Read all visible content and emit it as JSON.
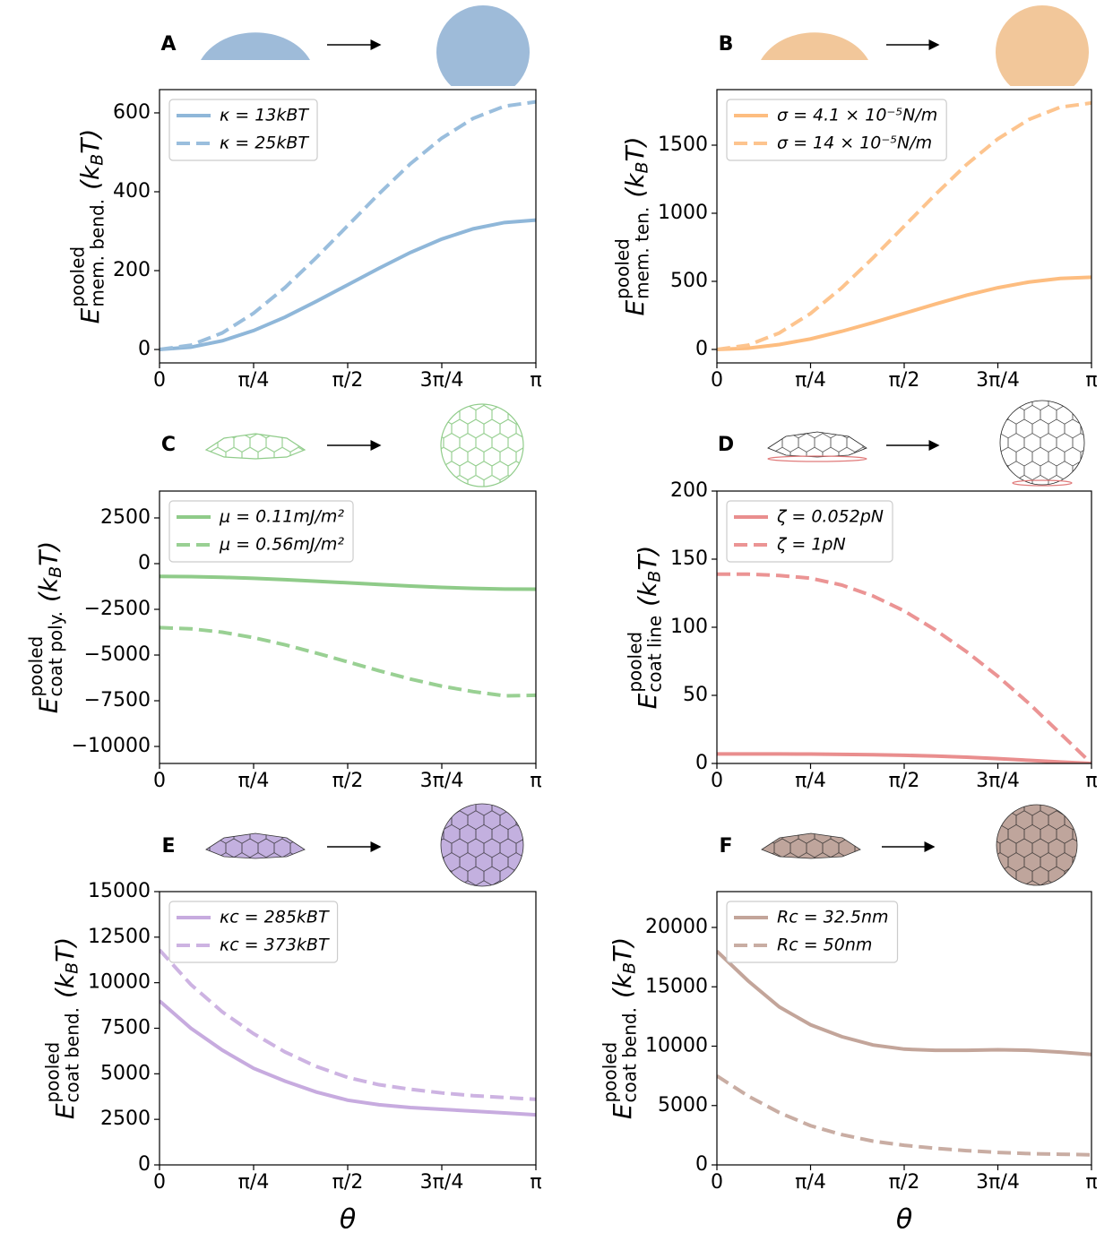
{
  "chart_data": [
    {
      "type": "line",
      "label": "A",
      "ylabel": {
        "symbol": "E",
        "superscript": "pooled",
        "subscript": "mem. bend.",
        "unit": "(k",
        "unit_subscript": "B",
        "unit_end": "T)"
      },
      "x": [
        0,
        0.2618,
        0.5236,
        0.7854,
        1.0472,
        1.309,
        1.5708,
        1.8326,
        2.0944,
        2.3562,
        2.618,
        2.8798,
        3.1416
      ],
      "xlim": [
        0,
        3.1416
      ],
      "xticks": [
        0,
        {
          "value": 0.7854,
          "label": "π/4"
        },
        {
          "value": 1.5708,
          "label": "π/2"
        },
        {
          "value": 2.3562,
          "label": "3π/4"
        },
        {
          "value": 3.1416,
          "label": "π"
        }
      ],
      "ylim": [
        -34,
        659
      ],
      "yticks": [
        0,
        200,
        400,
        600
      ],
      "series": [
        {
          "name": "κ = 13kBT",
          "color": "#8fb7d9",
          "linestyle": "solid",
          "values": [
            0,
            6,
            22,
            48,
            82,
            122,
            164,
            206,
            246,
            280,
            306,
            322,
            328
          ]
        },
        {
          "name": "κ = 25kBT",
          "color": "#9abedd",
          "linestyle": "dashed",
          "values": [
            0,
            11,
            42,
            92,
            157,
            233,
            314,
            395,
            471,
            536,
            586,
            617,
            628
          ]
        }
      ]
    },
    {
      "type": "line",
      "label": "B",
      "ylabel": {
        "symbol": "E",
        "superscript": "pooled",
        "subscript": "mem. ten.",
        "unit": "(k",
        "unit_subscript": "B",
        "unit_end": "T)"
      },
      "x": [
        0,
        0.2618,
        0.5236,
        0.7854,
        1.0472,
        1.309,
        1.5708,
        1.8326,
        2.0944,
        2.3562,
        2.618,
        2.8798,
        3.1416
      ],
      "xlim": [
        0,
        3.1416
      ],
      "xticks": [
        0,
        {
          "value": 0.7854,
          "label": "π/4"
        },
        {
          "value": 1.5708,
          "label": "π/2"
        },
        {
          "value": 2.3562,
          "label": "3π/4"
        },
        {
          "value": 3.1416,
          "label": "π"
        }
      ],
      "ylim": [
        -99,
        1908
      ],
      "yticks": [
        0,
        500,
        1000,
        1500
      ],
      "series": [
        {
          "name": "σ = 4.1 × 10⁻⁵N/m",
          "color": "#fdbd80",
          "linestyle": "solid",
          "values": [
            0,
            9,
            36,
            77,
            133,
            197,
            265,
            333,
            398,
            453,
            495,
            521,
            530
          ]
        },
        {
          "name": "σ = 14 × 10⁻⁵N/m",
          "color": "#fdc48e",
          "linestyle": "dashed",
          "values": [
            0,
            31,
            121,
            264,
            453,
            672,
            905,
            1138,
            1358,
            1546,
            1689,
            1779,
            1810
          ]
        }
      ]
    },
    {
      "type": "line",
      "label": "C",
      "ylabel": {
        "symbol": "E",
        "superscript": "pooled",
        "subscript": "coat poly.",
        "unit": "(k",
        "unit_subscript": "B",
        "unit_end": "T)"
      },
      "x": [
        0,
        0.2618,
        0.5236,
        0.7854,
        1.0472,
        1.309,
        1.5708,
        1.8326,
        2.0944,
        2.3562,
        2.618,
        2.8798,
        3.1416
      ],
      "xlim": [
        0,
        3.1416
      ],
      "xticks": [
        0,
        {
          "value": 0.7854,
          "label": "π/4"
        },
        {
          "value": 1.5708,
          "label": "π/2"
        },
        {
          "value": 2.3562,
          "label": "3π/4"
        },
        {
          "value": 3.1416,
          "label": "π"
        }
      ],
      "ylim": [
        -10930,
        3970
      ],
      "yticks": [
        {
          "value": -10000,
          "label": "−10000"
        },
        {
          "value": -7500,
          "label": "−7500"
        },
        {
          "value": -5000,
          "label": "−5000"
        },
        {
          "value": -2500,
          "label": "−2500"
        },
        0,
        2500
      ],
      "series": [
        {
          "name": "μ = 0.11mJ/m²",
          "color": "#8fcb89",
          "linestyle": "solid",
          "values": [
            -700,
            -712,
            -747,
            -802,
            -875,
            -960,
            -1050,
            -1140,
            -1225,
            -1298,
            -1353,
            -1388,
            -1400
          ]
        },
        {
          "name": "μ = 0.56mJ/m²",
          "color": "#99d093",
          "linestyle": "dashed",
          "values": [
            -3500,
            -3564,
            -3751,
            -4048,
            -4438,
            -4891,
            -5375,
            -5859,
            -6313,
            -6703,
            -7000,
            -7230,
            -7200
          ]
        }
      ]
    },
    {
      "type": "line",
      "label": "D",
      "ylabel": {
        "symbol": "E",
        "superscript": "pooled",
        "subscript": "coat line",
        "unit": "(k",
        "unit_subscript": "B",
        "unit_end": "T)"
      },
      "x": [
        0,
        0.2618,
        0.5236,
        0.7854,
        1.0472,
        1.309,
        1.5708,
        1.8326,
        2.0944,
        2.3562,
        2.618,
        2.8798,
        3.1416
      ],
      "xlim": [
        0,
        3.1416
      ],
      "xticks": [
        0,
        {
          "value": 0.7854,
          "label": "π/4"
        },
        {
          "value": 1.5708,
          "label": "π/2"
        },
        {
          "value": 2.3562,
          "label": "3π/4"
        },
        {
          "value": 3.1416,
          "label": "π"
        }
      ],
      "ylim": [
        0,
        200
      ],
      "yticks": [
        0,
        50,
        100,
        150,
        200
      ],
      "series": [
        {
          "name": "ζ = 0.052pN",
          "color": "#e98e8e",
          "linestyle": "solid",
          "values": [
            7,
            7,
            7,
            6.9,
            6.7,
            6.4,
            6,
            5.4,
            4.6,
            3.5,
            2.3,
            1.1,
            0
          ]
        },
        {
          "name": "ζ = 1pN",
          "color": "#eb9494",
          "linestyle": "dashed",
          "values": [
            139,
            139,
            138,
            136,
            131,
            123,
            112,
            98,
            82,
            64,
            44,
            22,
            0
          ]
        }
      ]
    },
    {
      "type": "line",
      "label": "E",
      "ylabel": {
        "symbol": "E",
        "superscript": "pooled",
        "subscript": "coat bend.",
        "unit": "(k",
        "unit_subscript": "B",
        "unit_end": "T)"
      },
      "xlabel": "θ",
      "x": [
        0,
        0.2618,
        0.5236,
        0.7854,
        1.0472,
        1.309,
        1.5708,
        1.8326,
        2.0944,
        2.3562,
        2.618,
        2.8798,
        3.1416
      ],
      "xlim": [
        0,
        3.1416
      ],
      "xticks": [
        0,
        {
          "value": 0.7854,
          "label": "π/4"
        },
        {
          "value": 1.5708,
          "label": "π/2"
        },
        {
          "value": 2.3562,
          "label": "3π/4"
        },
        {
          "value": 3.1416,
          "label": "π"
        }
      ],
      "ylim": [
        0,
        15000
      ],
      "yticks": [
        0,
        2500,
        5000,
        7500,
        10000,
        12500,
        15000
      ],
      "series": [
        {
          "name": "κc = 285kBT",
          "color": "#c7abdf",
          "linestyle": "solid",
          "values": [
            9000,
            7500,
            6300,
            5300,
            4600,
            4000,
            3550,
            3300,
            3150,
            3050,
            2950,
            2850,
            2750
          ]
        },
        {
          "name": "κc = 373kBT",
          "color": "#cdb3e2",
          "linestyle": "dashed",
          "values": [
            11800,
            9900,
            8400,
            7200,
            6200,
            5400,
            4800,
            4400,
            4150,
            3950,
            3800,
            3700,
            3600
          ]
        }
      ]
    },
    {
      "type": "line",
      "label": "F",
      "ylabel": {
        "symbol": "E",
        "superscript": "pooled",
        "subscript": "coat bend.",
        "unit": "(k",
        "unit_subscript": "B",
        "unit_end": "T)"
      },
      "xlabel": "θ",
      "x": [
        0,
        0.2618,
        0.5236,
        0.7854,
        1.0472,
        1.309,
        1.5708,
        1.8326,
        2.0944,
        2.3562,
        2.618,
        2.8798,
        3.1416
      ],
      "xlim": [
        0,
        3.1416
      ],
      "xticks": [
        0,
        {
          "value": 0.7854,
          "label": "π/4"
        },
        {
          "value": 1.5708,
          "label": "π/2"
        },
        {
          "value": 2.3562,
          "label": "3π/4"
        },
        {
          "value": 3.1416,
          "label": "π"
        }
      ],
      "ylim": [
        0,
        23019
      ],
      "yticks": [
        0,
        5000,
        10000,
        15000,
        20000
      ],
      "series": [
        {
          "name": "Rc = 32.5nm",
          "color": "#c3a59a",
          "linestyle": "solid",
          "values": [
            18000,
            15500,
            13300,
            11800,
            10800,
            10100,
            9750,
            9650,
            9650,
            9700,
            9650,
            9500,
            9300
          ]
        },
        {
          "name": "Rc = 50nm",
          "color": "#c9ada3",
          "linestyle": "dashed",
          "values": [
            7500,
            5800,
            4400,
            3300,
            2550,
            2000,
            1650,
            1400,
            1200,
            1050,
            950,
            900,
            850
          ]
        }
      ]
    }
  ]
}
